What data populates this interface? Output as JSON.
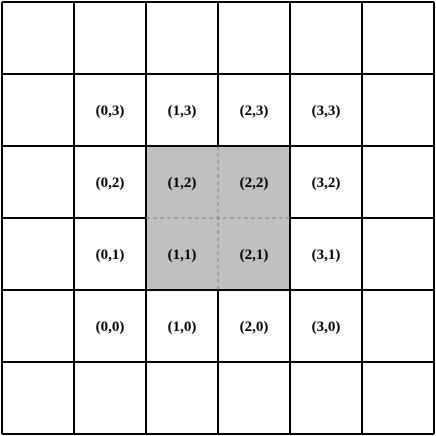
{
  "grid": {
    "rows": 6,
    "cols": 6,
    "line_color": "#000000",
    "background": "#ffffff"
  },
  "highlight": {
    "cells": [
      [
        1,
        2
      ],
      [
        2,
        2
      ],
      [
        1,
        1
      ],
      [
        2,
        1
      ]
    ],
    "fill": "#c0c0c0",
    "divider_color": "#808080",
    "divider_style": "dashed"
  },
  "labels": [
    {
      "text": "(0,3)",
      "col": 0,
      "row": 3
    },
    {
      "text": "(1,3)",
      "col": 1,
      "row": 3
    },
    {
      "text": "(2,3)",
      "col": 2,
      "row": 3
    },
    {
      "text": "(3,3)",
      "col": 3,
      "row": 3
    },
    {
      "text": "(0,2)",
      "col": 0,
      "row": 2
    },
    {
      "text": "(1,2)",
      "col": 1,
      "row": 2
    },
    {
      "text": "(2,2)",
      "col": 2,
      "row": 2
    },
    {
      "text": "(3,2)",
      "col": 3,
      "row": 2
    },
    {
      "text": "(0,1)",
      "col": 0,
      "row": 1
    },
    {
      "text": "(1,1)",
      "col": 1,
      "row": 1
    },
    {
      "text": "(2,1)",
      "col": 2,
      "row": 1
    },
    {
      "text": "(3,1)",
      "col": 3,
      "row": 1
    },
    {
      "text": "(0,0)",
      "col": 0,
      "row": 0
    },
    {
      "text": "(1,0)",
      "col": 1,
      "row": 0
    },
    {
      "text": "(2,0)",
      "col": 2,
      "row": 0
    },
    {
      "text": "(3,0)",
      "col": 3,
      "row": 0
    }
  ]
}
